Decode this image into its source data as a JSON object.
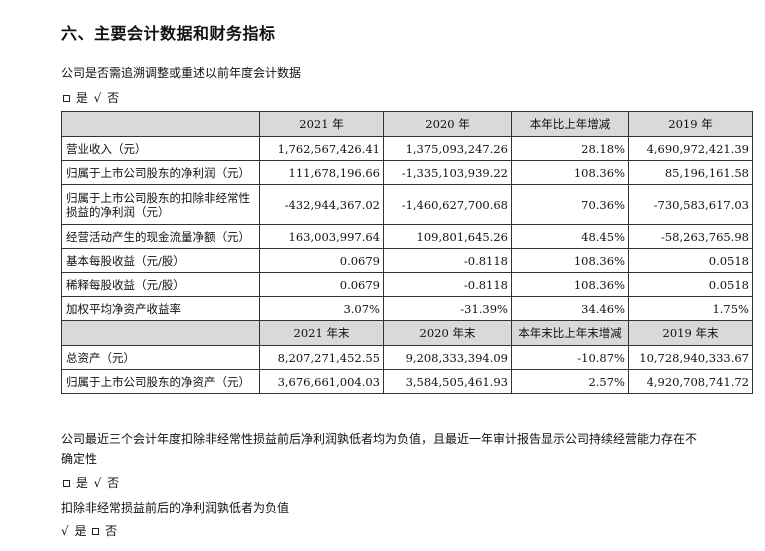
{
  "heading": "六、主要会计数据和财务指标",
  "retro_question": "公司是否需追溯调整或重述以前年度会计数据",
  "yes_label": "是",
  "no_label": "否",
  "check_mark": "√",
  "table_header_1": [
    "",
    "2021 年",
    "2020 年",
    "本年比上年增减",
    "2019 年"
  ],
  "rows_1": [
    {
      "label": "营业收入（元）",
      "v2021": "1,762,567,426.41",
      "v2020": "1,375,093,247.26",
      "change": "28.18%",
      "v2019": "4,690,972,421.39"
    },
    {
      "label": "归属于上市公司股东的净利润（元）",
      "v2021": "111,678,196.66",
      "v2020": "-1,335,103,939.22",
      "change": "108.36%",
      "v2019": "85,196,161.58"
    },
    {
      "label": "归属于上市公司股东的扣除非经常性损益的净利润（元）",
      "v2021": "-432,944,367.02",
      "v2020": "-1,460,627,700.68",
      "change": "70.36%",
      "v2019": "-730,583,617.03"
    },
    {
      "label": "经营活动产生的现金流量净额（元）",
      "v2021": "163,003,997.64",
      "v2020": "109,801,645.26",
      "change": "48.45%",
      "v2019": "-58,263,765.98"
    },
    {
      "label": "基本每股收益（元/股）",
      "v2021": "0.0679",
      "v2020": "-0.8118",
      "change": "108.36%",
      "v2019": "0.0518"
    },
    {
      "label": "稀释每股收益（元/股）",
      "v2021": "0.0679",
      "v2020": "-0.8118",
      "change": "108.36%",
      "v2019": "0.0518"
    },
    {
      "label": "加权平均净资产收益率",
      "v2021": "3.07%",
      "v2020": "-31.39%",
      "change": "34.46%",
      "v2019": "1.75%"
    }
  ],
  "table_header_2": [
    "",
    "2021 年末",
    "2020 年末",
    "本年末比上年末增减",
    "2019 年末"
  ],
  "rows_2": [
    {
      "label": "总资产（元）",
      "v2021": "8,207,271,452.55",
      "v2020": "9,208,333,394.09",
      "change": "-10.87%",
      "v2019": "10,728,940,333.67"
    },
    {
      "label": "归属于上市公司股东的净资产（元）",
      "v2021": "3,676,661,004.03",
      "v2020": "3,584,505,461.93",
      "change": "2.57%",
      "v2019": "4,920,708,741.72"
    }
  ],
  "note_1": "公司最近三个会计年度扣除非经常性损益前后净利润孰低者均为负值，且最近一年审计报告显示公司持续经营能力存在不确定性",
  "note_2": "扣除非经常损益前后的净利润孰低者为负值"
}
